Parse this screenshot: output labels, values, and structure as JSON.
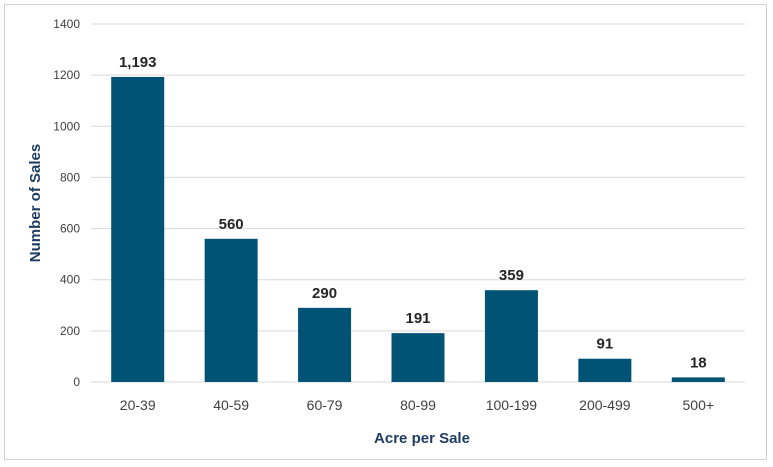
{
  "colors": {
    "bar": "#005374",
    "axis_title": "#1f3d64",
    "grid": "#d9d9d9"
  },
  "chart_data": {
    "type": "bar",
    "categories": [
      "20-39",
      "40-59",
      "60-79",
      "80-99",
      "100-199",
      "200-499",
      "500+"
    ],
    "values": [
      1193,
      560,
      290,
      191,
      359,
      91,
      18
    ],
    "data_labels": [
      "1,193",
      "560",
      "290",
      "191",
      "359",
      "91",
      "18"
    ],
    "title": "",
    "xlabel": "Acre per Sale",
    "ylabel": "Number of Sales",
    "ylim": [
      0,
      1400
    ],
    "yticks": [
      0,
      200,
      400,
      600,
      800,
      1000,
      1200,
      1400
    ],
    "ytick_labels": [
      "0",
      "200",
      "400",
      "600",
      "800",
      "1000",
      "1200",
      "1400"
    ],
    "grid": true,
    "legend": "none"
  }
}
